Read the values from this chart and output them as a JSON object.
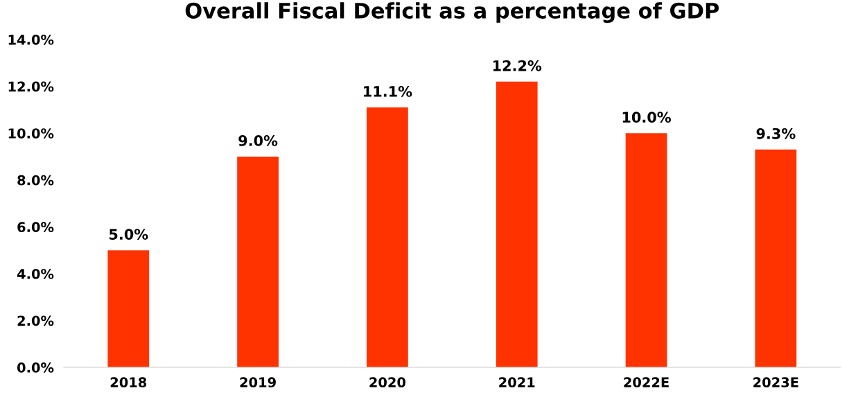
{
  "chart_data": {
    "type": "bar",
    "title": "Overall Fiscal Deficit as a percentage of GDP",
    "categories": [
      "2018",
      "2019",
      "2020",
      "2021",
      "2022E",
      "2023E"
    ],
    "values": [
      5.0,
      9.0,
      11.1,
      12.2,
      10.0,
      9.3
    ],
    "value_labels": [
      "5.0%",
      "9.0%",
      "11.1%",
      "12.2%",
      "10.0%",
      "9.3%"
    ],
    "color": "#ff3300",
    "ylim": [
      0,
      14
    ],
    "yticks": [
      {
        "value": 0,
        "label": "0.0%"
      },
      {
        "value": 2,
        "label": "2.0%"
      },
      {
        "value": 4,
        "label": "4.0%"
      },
      {
        "value": 6,
        "label": "6.0%"
      },
      {
        "value": 8,
        "label": "8.0%"
      },
      {
        "value": 10,
        "label": "10.0%"
      },
      {
        "value": 12,
        "label": "12.0%"
      },
      {
        "value": 14,
        "label": "14.0%"
      }
    ],
    "grid": false,
    "legend": false
  }
}
